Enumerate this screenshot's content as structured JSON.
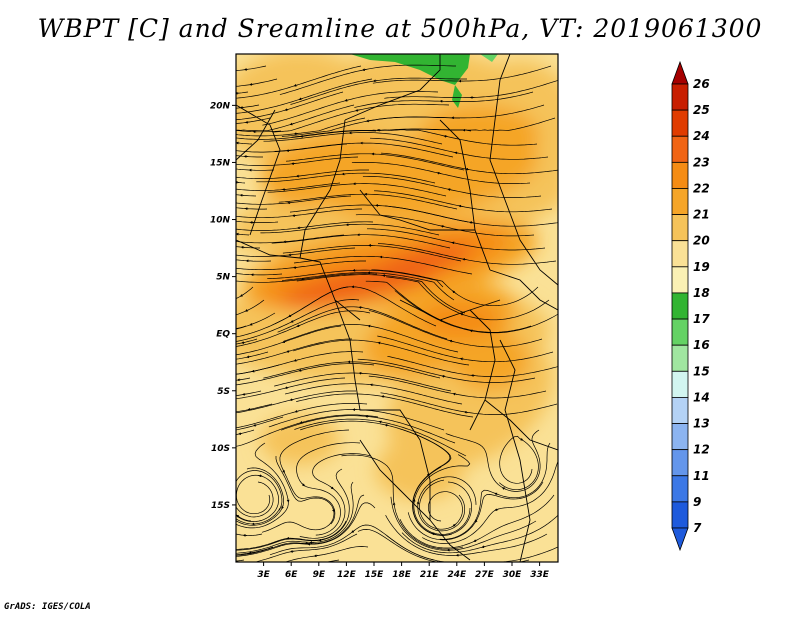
{
  "title": "WBPT [C] and Sreamline at 500hPa, VT: 2019061300",
  "credit": "GrADS: IGES/COLA",
  "map": {
    "lat_labels": [
      "20N",
      "15N",
      "10N",
      "5N",
      "EQ",
      "5S",
      "10S",
      "15S"
    ],
    "lat_values": [
      20,
      15,
      10,
      5,
      0,
      -5,
      -10,
      -15
    ],
    "lon_labels": [
      "3E",
      "6E",
      "9E",
      "12E",
      "15E",
      "18E",
      "21E",
      "24E",
      "27E",
      "30E",
      "33E"
    ],
    "lon_values": [
      3,
      6,
      9,
      12,
      15,
      18,
      21,
      24,
      27,
      30,
      33
    ],
    "lon_range": [
      0,
      35
    ],
    "lat_range": [
      -20,
      24.5
    ]
  },
  "colorbar": {
    "levels": [
      "26",
      "25",
      "24",
      "23",
      "22",
      "21",
      "20",
      "19",
      "18",
      "17",
      "16",
      "15",
      "14",
      "13",
      "12",
      "11",
      "9",
      "7"
    ],
    "colors": [
      "#a50000",
      "#c81e00",
      "#e03c00",
      "#f06414",
      "#f58c14",
      "#f5a528",
      "#f5c35a",
      "#fae196",
      "#faf0b4",
      "#32b432",
      "#64d264",
      "#a0e6a0",
      "#d2f5f0",
      "#b4d2f5",
      "#8cb4f0",
      "#6496eb",
      "#3c78e6",
      "#1e5adc"
    ],
    "top_color": "#a50000",
    "bottom_color": "#1e5adc"
  },
  "field_colors": {
    "c19": "#fae196",
    "c20": "#f5c35a",
    "c21": "#f5a528",
    "c22": "#f58c14",
    "c23": "#f06414",
    "c17": "#32b432",
    "c16": "#64d264"
  }
}
